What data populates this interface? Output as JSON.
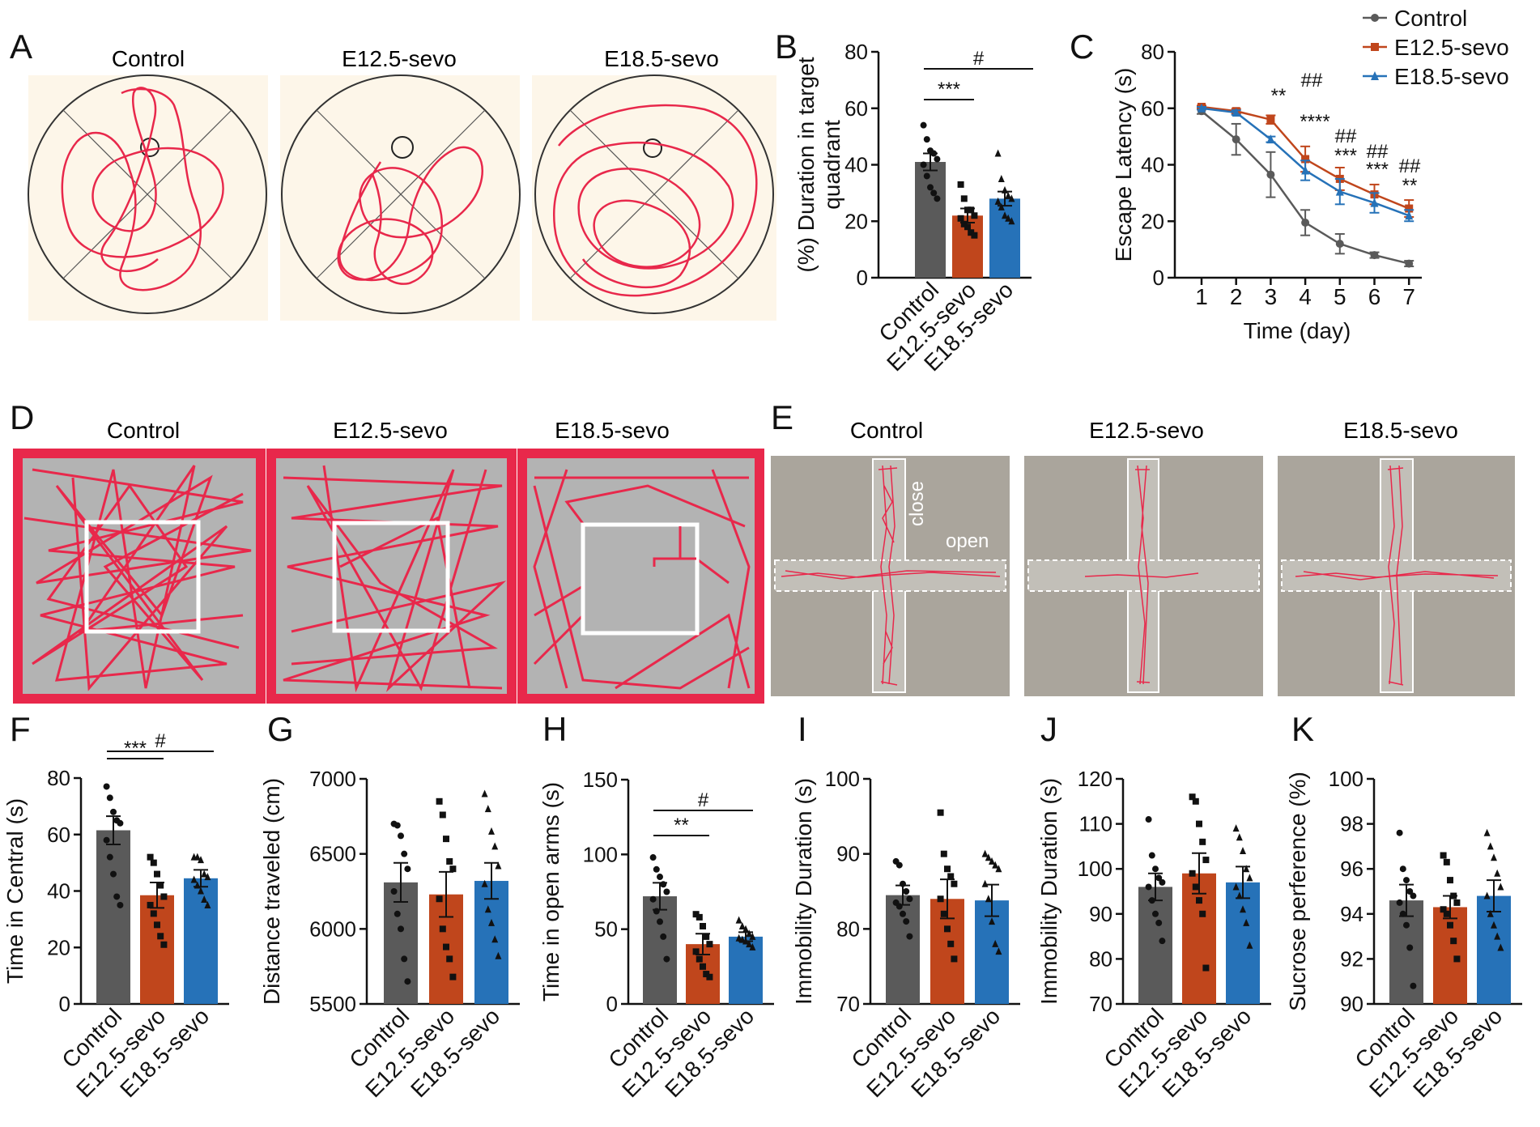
{
  "groups": [
    "Control",
    "E12.5-sevo",
    "E18.5-sevo"
  ],
  "colors": {
    "control": "#5a5a5a",
    "e125": "#c0461c",
    "e185": "#2672b8",
    "track": "#e8284b",
    "arena_bg": "#fdf6e9",
    "field_gray": "#b3b3b3",
    "maze_bg": "#aaa59c"
  },
  "panel_letters": [
    "A",
    "B",
    "C",
    "D",
    "E",
    "F",
    "G",
    "H",
    "I",
    "J",
    "K"
  ],
  "panel_a": {
    "titles": [
      "Control",
      "E12.5-sevo",
      "E18.5-sevo"
    ]
  },
  "panel_d": {
    "titles": [
      "Control",
      "E12.5-sevo",
      "E18.5-sevo"
    ]
  },
  "panel_e": {
    "titles": [
      "Control",
      "E12.5-sevo",
      "E18.5-sevo"
    ],
    "close_label": "close",
    "open_label": "open"
  },
  "chart_data": [
    {
      "panel": "B",
      "type": "bar",
      "title": "",
      "categories": [
        "Control",
        "E12.5-sevo",
        "E18.5-sevo"
      ],
      "values": [
        41,
        22,
        28
      ],
      "errors": [
        3,
        2.5,
        2.5
      ],
      "ylim": [
        0,
        80
      ],
      "yticks": [
        0,
        20,
        40,
        60,
        80
      ],
      "ylabel": "(%) Duration in target quadrant",
      "ylabel_lines": [
        "(%) Duration in target",
        "quadrant"
      ],
      "xlabel": "",
      "points": [
        [
          54,
          49,
          45,
          44,
          42,
          40,
          36,
          32,
          30,
          28
        ],
        [
          33,
          28,
          24,
          24,
          22,
          21,
          19,
          18,
          16,
          15
        ],
        [
          44,
          35,
          31,
          29,
          28,
          27,
          25,
          22,
          21,
          20
        ]
      ],
      "annotations": [
        "***",
        "#"
      ]
    },
    {
      "panel": "C",
      "type": "line",
      "x": [
        1,
        2,
        3,
        4,
        5,
        6,
        7
      ],
      "xlabel": "Time (day)",
      "ylabel": "Escape Latency (s)",
      "ylim": [
        0,
        80
      ],
      "yticks": [
        0,
        20,
        40,
        60,
        80
      ],
      "series": [
        {
          "name": "Control",
          "values": [
            59,
            49,
            36.5,
            19.5,
            12,
            8,
            5
          ],
          "errors": [
            1,
            5.5,
            8,
            4.5,
            3.5,
            1,
            1
          ]
        },
        {
          "name": "E12.5-sevo",
          "values": [
            60.5,
            59,
            56,
            42,
            35,
            29.5,
            24.5
          ],
          "errors": [
            0.5,
            0.8,
            1.5,
            4.5,
            4,
            3.5,
            3
          ]
        },
        {
          "name": "E18.5-sevo",
          "values": [
            60,
            58.5,
            49,
            38,
            30.5,
            26.5,
            22
          ],
          "errors": [
            0.5,
            0.8,
            1,
            3.5,
            4.5,
            3.5,
            2
          ]
        }
      ],
      "annotations": [
        {
          "day": 3,
          "marks": [
            "**"
          ]
        },
        {
          "day": 4,
          "marks": [
            "##",
            "****"
          ]
        },
        {
          "day": 5,
          "marks": [
            "##",
            "***"
          ]
        },
        {
          "day": 6,
          "marks": [
            "##",
            "***"
          ]
        },
        {
          "day": 7,
          "marks": [
            "##",
            "**"
          ]
        }
      ]
    },
    {
      "panel": "F",
      "type": "bar",
      "categories": [
        "Control",
        "E12.5-sevo",
        "E18.5-sevo"
      ],
      "values": [
        61.5,
        38.5,
        44.5
      ],
      "errors": [
        5,
        4.5,
        3
      ],
      "ylim": [
        0,
        80
      ],
      "yticks": [
        0,
        20,
        40,
        60,
        80
      ],
      "ylabel": "Time in Central (s)",
      "points": [
        [
          77,
          73,
          68,
          65,
          64,
          58,
          52,
          46,
          38,
          35
        ],
        [
          52,
          50,
          46,
          42,
          38,
          35,
          32,
          28,
          24,
          21
        ],
        [
          52,
          52,
          51,
          46,
          45,
          44,
          42,
          40,
          37,
          35
        ]
      ],
      "annotations": [
        "***",
        "#"
      ]
    },
    {
      "panel": "G",
      "type": "bar",
      "categories": [
        "Control",
        "E12.5-sevo",
        "E18.5-sevo"
      ],
      "values": [
        6310,
        6230,
        6320
      ],
      "errors": [
        130,
        150,
        120
      ],
      "ylim": [
        5500,
        7000
      ],
      "yticks": [
        5500,
        6000,
        6500,
        7000
      ],
      "ylabel": "Distance traveled (cm)",
      "points": [
        [
          6700,
          6690,
          6620,
          6500,
          6400,
          6250,
          6100,
          6000,
          5800,
          5650
        ],
        [
          6850,
          6760,
          6600,
          6450,
          6400,
          6200,
          6000,
          5880,
          5800,
          5680
        ],
        [
          6900,
          6800,
          6650,
          6550,
          6420,
          6300,
          6130,
          6040,
          5930,
          5820
        ]
      ],
      "annotations": []
    },
    {
      "panel": "H",
      "type": "bar",
      "categories": [
        "Control",
        "E12.5-sevo",
        "E18.5-sevo"
      ],
      "values": [
        72,
        40,
        45
      ],
      "errors": [
        9,
        7,
        3
      ],
      "ylim": [
        0,
        150
      ],
      "yticks": [
        0,
        50,
        100,
        150
      ],
      "ylabel": "Time in open arms (s)",
      "points": [
        [
          98,
          90,
          85,
          80,
          75,
          70,
          62,
          55,
          45,
          30
        ],
        [
          60,
          58,
          52,
          45,
          40,
          35,
          30,
          25,
          20,
          18
        ],
        [
          56,
          52,
          50,
          47,
          45,
          44,
          43,
          42,
          40,
          38
        ]
      ],
      "annotations": [
        "**",
        "#"
      ]
    },
    {
      "panel": "I",
      "type": "bar",
      "categories": [
        "Control",
        "E12.5-sevo",
        "E18.5-sevo"
      ],
      "values": [
        84.5,
        84,
        83.8
      ],
      "errors": [
        1.3,
        2.6,
        2.1
      ],
      "ylim": [
        70,
        100
      ],
      "yticks": [
        70,
        80,
        90,
        100
      ],
      "ylabel": "Immobility Duration (s)",
      "points": [
        [
          89,
          88.5,
          86,
          85,
          84,
          83.5,
          83,
          82,
          81,
          79
        ],
        [
          95.5,
          90,
          88,
          87,
          86,
          84,
          82,
          80,
          78,
          76
        ],
        [
          90,
          89.5,
          89,
          88.5,
          88,
          86,
          84,
          81,
          78,
          77
        ]
      ],
      "annotations": []
    },
    {
      "panel": "J",
      "type": "bar",
      "categories": [
        "Control",
        "E12.5-sevo",
        "E18.5-sevo"
      ],
      "values": [
        96,
        99,
        97
      ],
      "errors": [
        3,
        4.5,
        3.5
      ],
      "ylim": [
        70,
        120
      ],
      "yticks": [
        70,
        80,
        90,
        100,
        110,
        120
      ],
      "ylabel": "Immobility Duration (s)",
      "points": [
        [
          111,
          103,
          100,
          98,
          97,
          96,
          93,
          90,
          88,
          84
        ],
        [
          116,
          115,
          110,
          106,
          102,
          99,
          96,
          93,
          90,
          78
        ],
        [
          109,
          107,
          104,
          100,
          98,
          96,
          94,
          91,
          88,
          83
        ]
      ],
      "annotations": []
    },
    {
      "panel": "K",
      "type": "bar",
      "categories": [
        "Control",
        "E12.5-sevo",
        "E18.5-sevo"
      ],
      "values": [
        94.6,
        94.3,
        94.8
      ],
      "errors": [
        0.7,
        0.5,
        0.7
      ],
      "ylim": [
        90,
        100
      ],
      "yticks": [
        90,
        92,
        94,
        96,
        98,
        100
      ],
      "ylabel": "Sucrose perference (%)",
      "points": [
        [
          97.6,
          96,
          95.5,
          95,
          94.8,
          94.5,
          94,
          93.5,
          92.5,
          90.8
        ],
        [
          96.6,
          96.3,
          95.5,
          94.8,
          94.5,
          94.2,
          94,
          93.5,
          92.8,
          92
        ],
        [
          97.6,
          97,
          96.5,
          95.8,
          95.2,
          94.8,
          94,
          93.5,
          93,
          92.5
        ]
      ],
      "annotations": []
    }
  ]
}
